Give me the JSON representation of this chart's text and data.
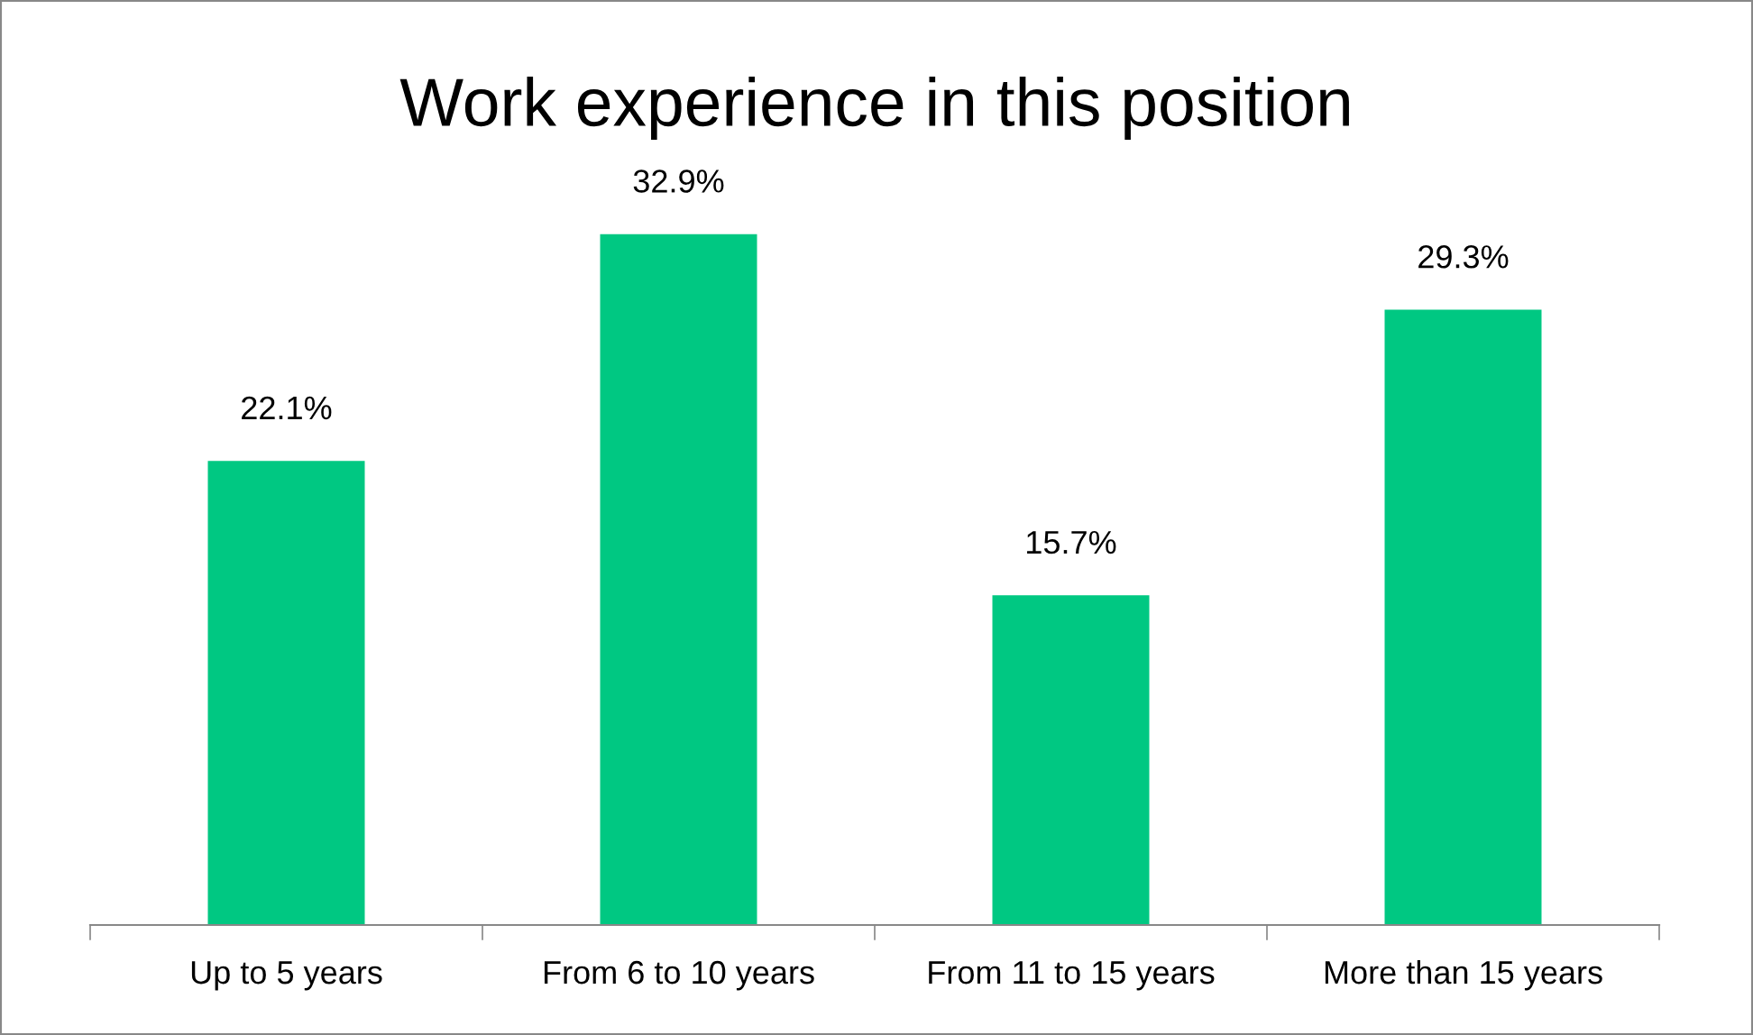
{
  "chart_data": {
    "type": "bar",
    "title": "Work experience in this position",
    "categories": [
      "Up to 5 years",
      "From 6 to 10 years",
      "From 11 to 15 years",
      "More than 15 years"
    ],
    "values": [
      22.1,
      32.9,
      15.7,
      29.3
    ],
    "value_labels": [
      "22.1%",
      "32.9%",
      "15.7%",
      "29.3%"
    ],
    "color": "#00c882",
    "grid": false,
    "legend": false
  }
}
